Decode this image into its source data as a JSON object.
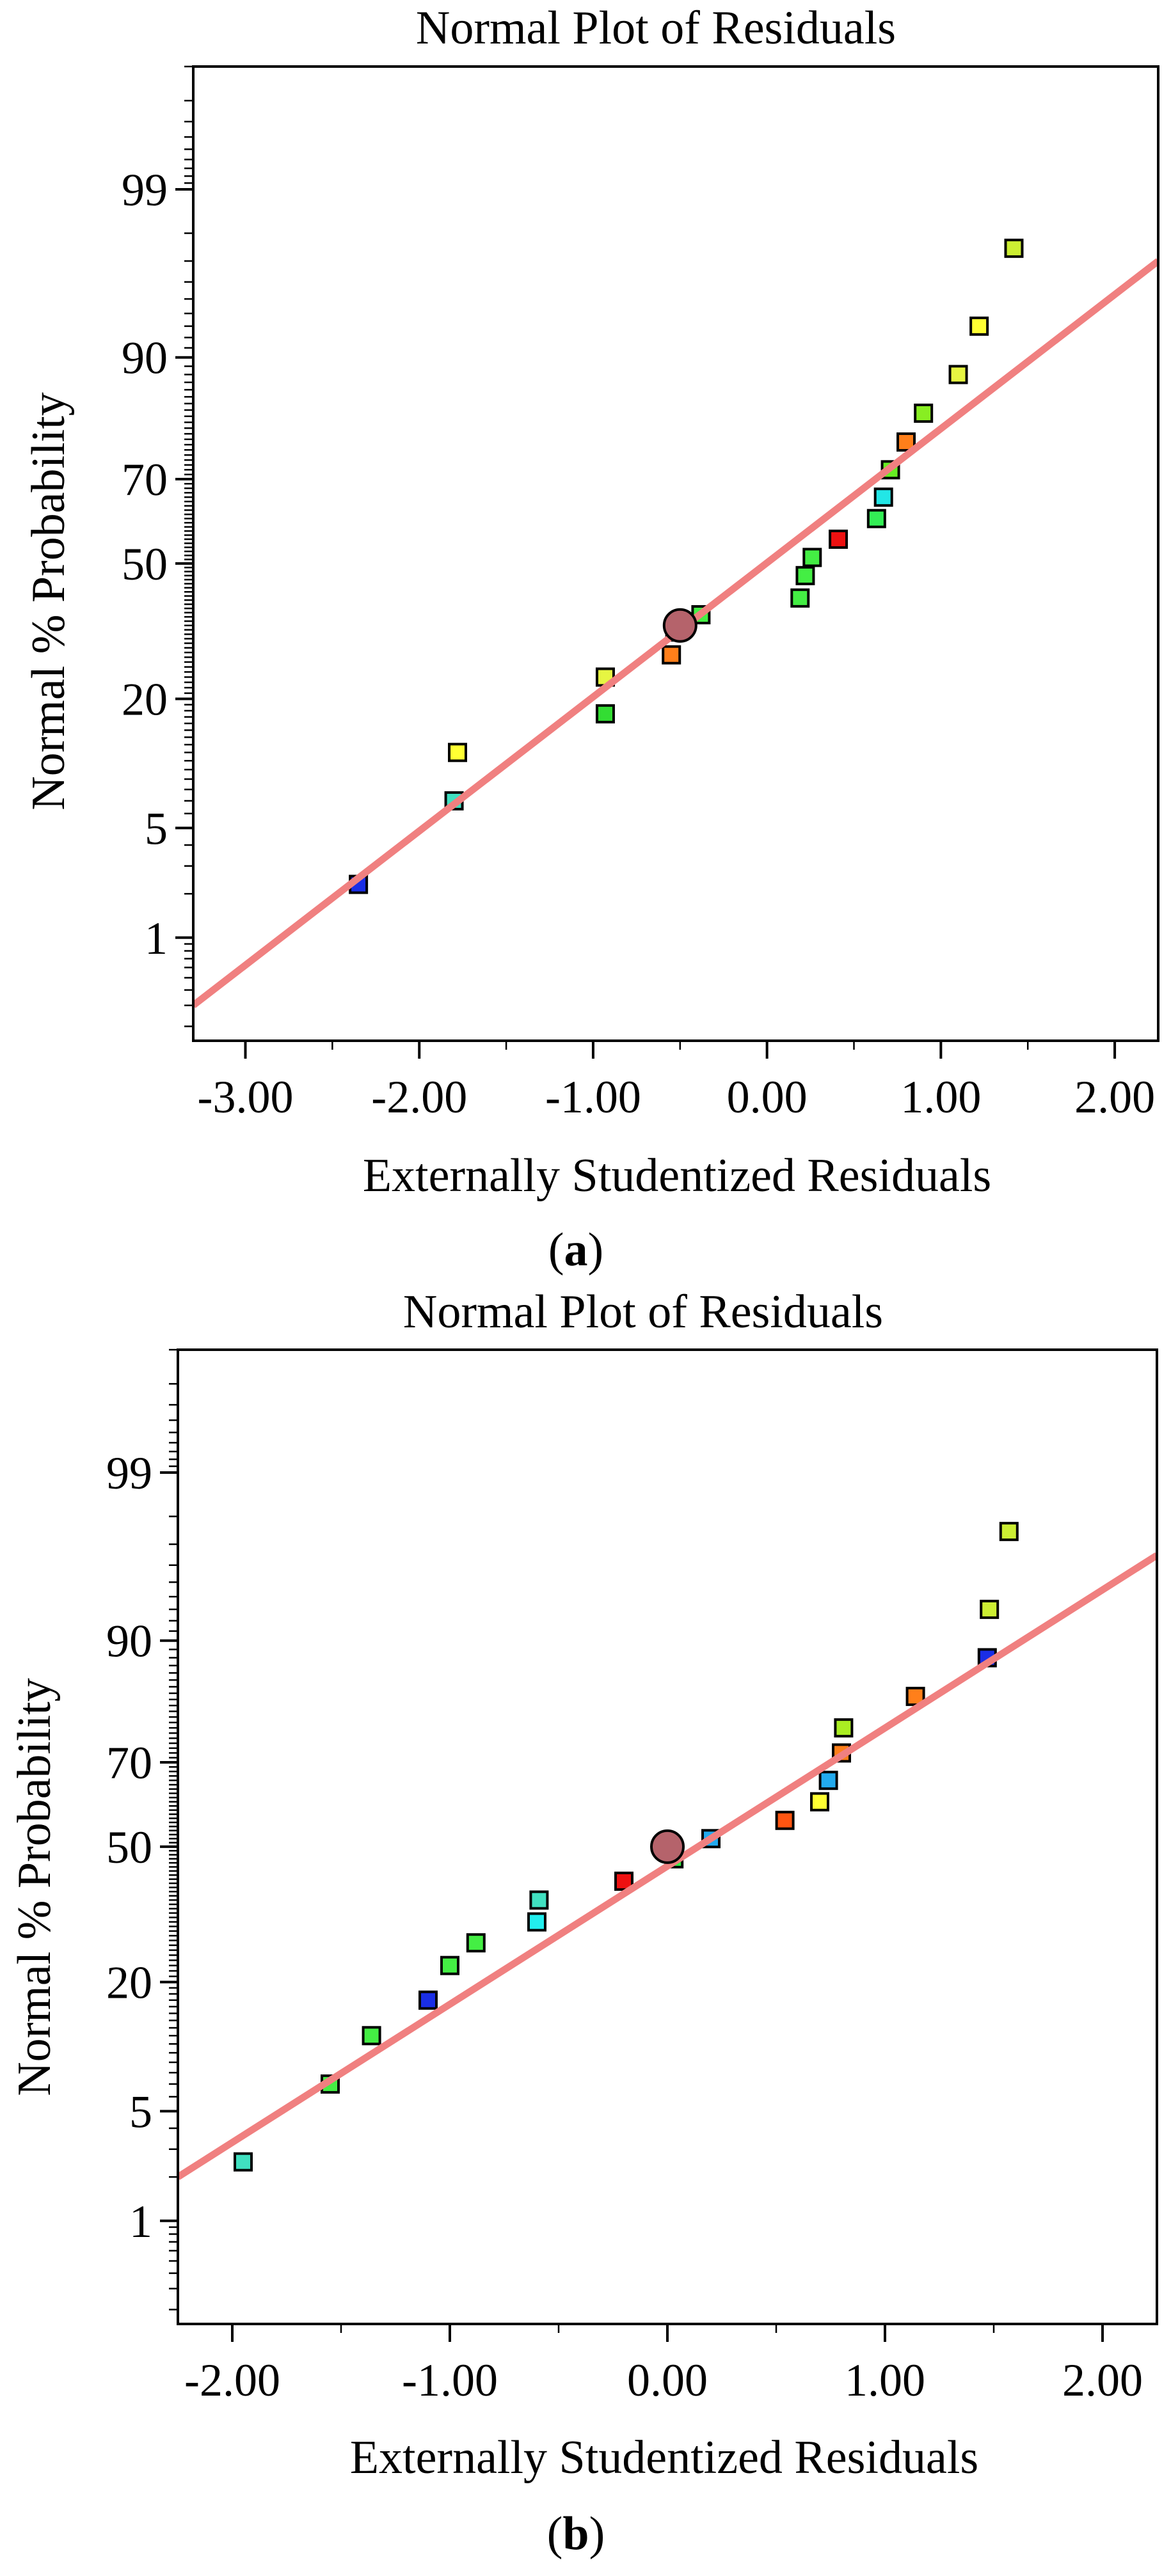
{
  "colors": {
    "fit_line": "#f08080",
    "marker_outline": "#000000",
    "center_marker": "#b5636b"
  },
  "chart_data": [
    {
      "type": "scatter",
      "title": "Normal Plot of Residuals",
      "xlabel": "Externally Studentized Residuals",
      "ylabel": "Normal % Probability",
      "caption_open": "(",
      "caption_letter": "a",
      "caption_close": ")",
      "xlim": [
        -3.3,
        2.25
      ],
      "xticks": [
        -3.0,
        -2.0,
        -1.0,
        0.0,
        1.0,
        2.0
      ],
      "xtick_labels": [
        "-3.00",
        "-2.00",
        "-1.00",
        "0.00",
        "1.00",
        "2.00"
      ],
      "y_scale": "normal-probability",
      "yticks": [
        1,
        5,
        20,
        50,
        70,
        90,
        99
      ],
      "ytick_labels": [
        "1",
        "5",
        "20",
        "50",
        "70",
        "90",
        "99"
      ],
      "ylim": [
        0.15,
        99.9
      ],
      "grid": false,
      "fit_line": {
        "x": [
          -3.3,
          2.25
        ],
        "y": [
          0.3,
          97.0
        ]
      },
      "center_marker": {
        "x": -0.5,
        "y": 35
      },
      "points": [
        {
          "x": -2.35,
          "y": 2.3,
          "color": "#1a2ee6"
        },
        {
          "x": -1.8,
          "y": 7.0,
          "color": "#40e0c0"
        },
        {
          "x": -1.78,
          "y": 12.0,
          "color": "#ffff33"
        },
        {
          "x": -0.93,
          "y": 17.5,
          "color": "#33dd33"
        },
        {
          "x": -0.93,
          "y": 24.0,
          "color": "#e6f542"
        },
        {
          "x": -0.55,
          "y": 28.5,
          "color": "#ff7f1a"
        },
        {
          "x": -0.53,
          "y": 33.5,
          "color": "#33dd44"
        },
        {
          "x": -0.38,
          "y": 37.5,
          "color": "#44ee44"
        },
        {
          "x": 0.19,
          "y": 41.5,
          "color": "#44ee44"
        },
        {
          "x": 0.22,
          "y": 47.0,
          "color": "#44ee44"
        },
        {
          "x": 0.26,
          "y": 51.5,
          "color": "#44ee44"
        },
        {
          "x": 0.41,
          "y": 56.0,
          "color": "#ee1111"
        },
        {
          "x": 0.63,
          "y": 61.0,
          "color": "#33ee55"
        },
        {
          "x": 0.67,
          "y": 66.0,
          "color": "#22e6e6"
        },
        {
          "x": 0.71,
          "y": 72.0,
          "color": "#66ee22"
        },
        {
          "x": 0.8,
          "y": 77.5,
          "color": "#ff7f1a"
        },
        {
          "x": 0.9,
          "y": 82.5,
          "color": "#88ee22"
        },
        {
          "x": 1.1,
          "y": 88.0,
          "color": "#e6f542"
        },
        {
          "x": 1.22,
          "y": 93.0,
          "color": "#ffff33"
        },
        {
          "x": 1.42,
          "y": 97.5,
          "color": "#ccee33"
        }
      ]
    },
    {
      "type": "scatter",
      "title": "Normal Plot of Residuals",
      "xlabel": "Externally Studentized Residuals",
      "ylabel": "Normal % Probability",
      "caption_open": "(",
      "caption_letter": "b",
      "caption_close": ")",
      "xlim": [
        -2.25,
        2.25
      ],
      "xticks": [
        -2.0,
        -1.0,
        0.0,
        1.0,
        2.0
      ],
      "xtick_labels": [
        "-2.00",
        "-1.00",
        "0.00",
        "1.00",
        "2.00"
      ],
      "y_scale": "normal-probability",
      "yticks": [
        1,
        5,
        20,
        50,
        70,
        90,
        99
      ],
      "ytick_labels": [
        "1",
        "5",
        "20",
        "50",
        "70",
        "90",
        "99"
      ],
      "ylim": [
        0.15,
        99.9
      ],
      "grid": false,
      "fit_line": {
        "x": [
          -2.25,
          2.25
        ],
        "y": [
          2.0,
          96.5
        ]
      },
      "center_marker": {
        "x": 0.0,
        "y": 50
      },
      "points": [
        {
          "x": -1.95,
          "y": 2.5,
          "color": "#40e0c0"
        },
        {
          "x": -1.55,
          "y": 7.0,
          "color": "#44ee44"
        },
        {
          "x": -1.36,
          "y": 12.0,
          "color": "#44ee44"
        },
        {
          "x": -1.1,
          "y": 17.0,
          "color": "#1a2ee6"
        },
        {
          "x": -1.0,
          "y": 23.0,
          "color": "#44ee44"
        },
        {
          "x": -0.88,
          "y": 27.5,
          "color": "#44ee44"
        },
        {
          "x": -0.6,
          "y": 32.0,
          "color": "#22eeee"
        },
        {
          "x": -0.59,
          "y": 37.0,
          "color": "#40e0c0"
        },
        {
          "x": -0.2,
          "y": 41.5,
          "color": "#ee1111"
        },
        {
          "x": 0.03,
          "y": 47.0,
          "color": "#33ee44"
        },
        {
          "x": 0.2,
          "y": 52.0,
          "color": "#22aaee"
        },
        {
          "x": 0.54,
          "y": 56.5,
          "color": "#ff5511"
        },
        {
          "x": 0.7,
          "y": 61.0,
          "color": "#ffff33"
        },
        {
          "x": 0.74,
          "y": 66.0,
          "color": "#22aaee"
        },
        {
          "x": 0.8,
          "y": 72.0,
          "color": "#ff7f1a"
        },
        {
          "x": 0.81,
          "y": 77.0,
          "color": "#aaee22"
        },
        {
          "x": 1.14,
          "y": 82.5,
          "color": "#ff7f1a"
        },
        {
          "x": 1.47,
          "y": 88.0,
          "color": "#1a2ee6"
        },
        {
          "x": 1.48,
          "y": 93.0,
          "color": "#ccee33"
        },
        {
          "x": 1.57,
          "y": 97.5,
          "color": "#ccee33"
        }
      ]
    }
  ]
}
